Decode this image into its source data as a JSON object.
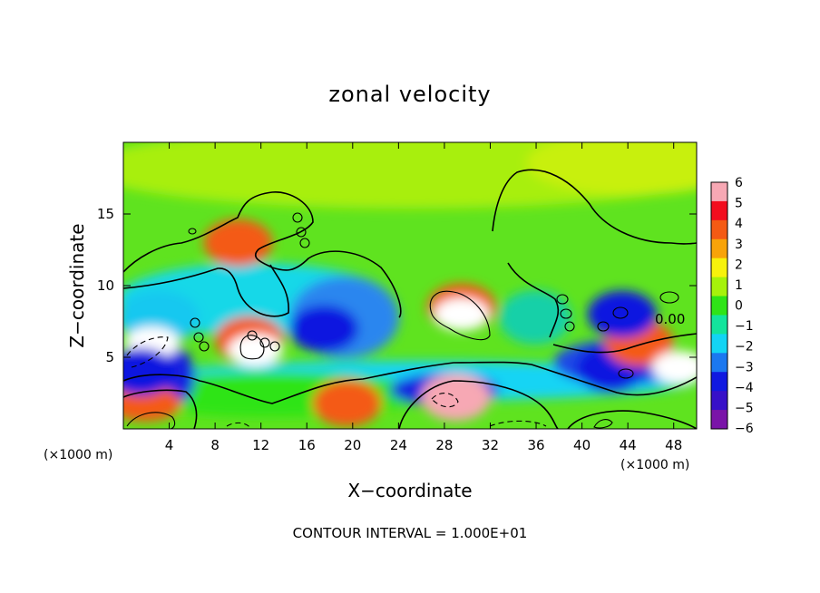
{
  "chart_data": {
    "type": "heatmap",
    "title": "zonal velocity",
    "xlabel": "X−coordinate",
    "ylabel": "Z−coordinate",
    "x_unit": "(×1000 m)",
    "y_unit": "(×1000 m)",
    "xlim": [
      0,
      50
    ],
    "ylim": [
      0,
      20
    ],
    "x_ticks": [
      4,
      8,
      12,
      16,
      20,
      24,
      28,
      32,
      36,
      40,
      44,
      48
    ],
    "y_ticks": [
      5,
      10,
      15
    ],
    "colorbar": {
      "range": [
        -6,
        6
      ],
      "ticks": [
        6,
        5,
        4,
        3,
        2,
        1,
        0,
        -1,
        -2,
        -3,
        -4,
        -5,
        -6
      ],
      "colors": [
        "#f7a8b4",
        "#f20d1e",
        "#f45a14",
        "#f8a309",
        "#f7f20c",
        "#a6f20b",
        "#2fe417",
        "#13e49c",
        "#13d4f4",
        "#1b78f0",
        "#1019e0",
        "#3710c8",
        "#7a14a8"
      ]
    },
    "contour_label": "0.00",
    "contour_interval": "CONTOUR INTERVAL = 1.000E+01",
    "features": [
      {
        "x": 2.5,
        "z": 6.0,
        "u": 8
      },
      {
        "x": 1.5,
        "z": 4.0,
        "u": -4
      },
      {
        "x": 11.0,
        "z": 6.2,
        "u": 4
      },
      {
        "x": 11.5,
        "z": 5.5,
        "u": 8
      },
      {
        "x": 17.5,
        "z": 7.0,
        "u": -4
      },
      {
        "x": 19.5,
        "z": 1.8,
        "u": 4
      },
      {
        "x": 29.5,
        "z": 8.5,
        "u": 4
      },
      {
        "x": 29.5,
        "z": 8.0,
        "u": 8
      },
      {
        "x": 29.0,
        "z": 2.2,
        "u": 6
      },
      {
        "x": 42.5,
        "z": 4.2,
        "u": -4
      },
      {
        "x": 45.0,
        "z": 6.0,
        "u": 4
      },
      {
        "x": 48.5,
        "z": 4.3,
        "u": 7
      },
      {
        "x": 10.0,
        "z": 13.0,
        "u": 4
      },
      {
        "x": 43.5,
        "z": 8.0,
        "u": -4
      }
    ]
  }
}
